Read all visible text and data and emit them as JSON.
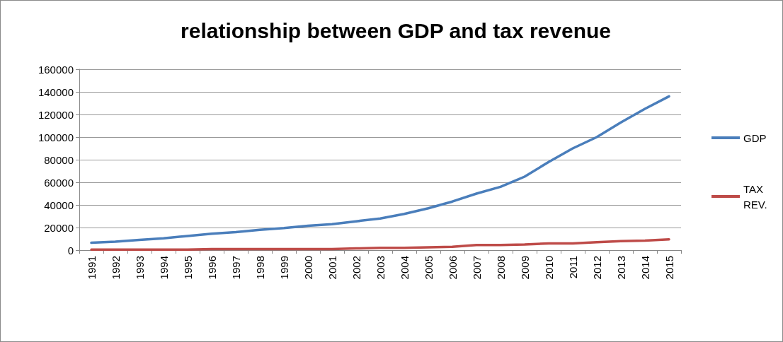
{
  "chart_data": {
    "type": "line",
    "title": "relationship between GDP and tax revenue",
    "categories": [
      "1991",
      "1992",
      "1993",
      "1994",
      "1995",
      "1996",
      "1997",
      "1998",
      "1999",
      "2000",
      "2001",
      "2002",
      "2003",
      "2004",
      "2005",
      "2006",
      "2007",
      "2008",
      "2009",
      "2010",
      "2011",
      "2012",
      "2013",
      "2014",
      "2015"
    ],
    "series": [
      {
        "name": "GDP",
        "color": "#4a7ebb",
        "values": [
          6500,
          7500,
          9000,
          10500,
          12500,
          14500,
          16000,
          18000,
          19500,
          21500,
          23000,
          25500,
          28000,
          32000,
          37000,
          43000,
          50000,
          56000,
          65000,
          78000,
          90000,
          100000,
          113000,
          125000,
          136000
        ]
      },
      {
        "name": "TAX REV.",
        "color": "#be4b48",
        "values": [
          500,
          500,
          500,
          500,
          500,
          1000,
          1000,
          1000,
          1000,
          1000,
          1000,
          1500,
          2000,
          2000,
          2500,
          3000,
          4500,
          4500,
          5000,
          6000,
          6000,
          7000,
          8000,
          8500,
          9500
        ]
      }
    ],
    "ylim": [
      0,
      160000
    ],
    "yticks": [
      0,
      20000,
      40000,
      60000,
      80000,
      100000,
      120000,
      140000,
      160000
    ],
    "grid": "y",
    "legend": "right",
    "marker": "none",
    "line_style": "solid"
  }
}
